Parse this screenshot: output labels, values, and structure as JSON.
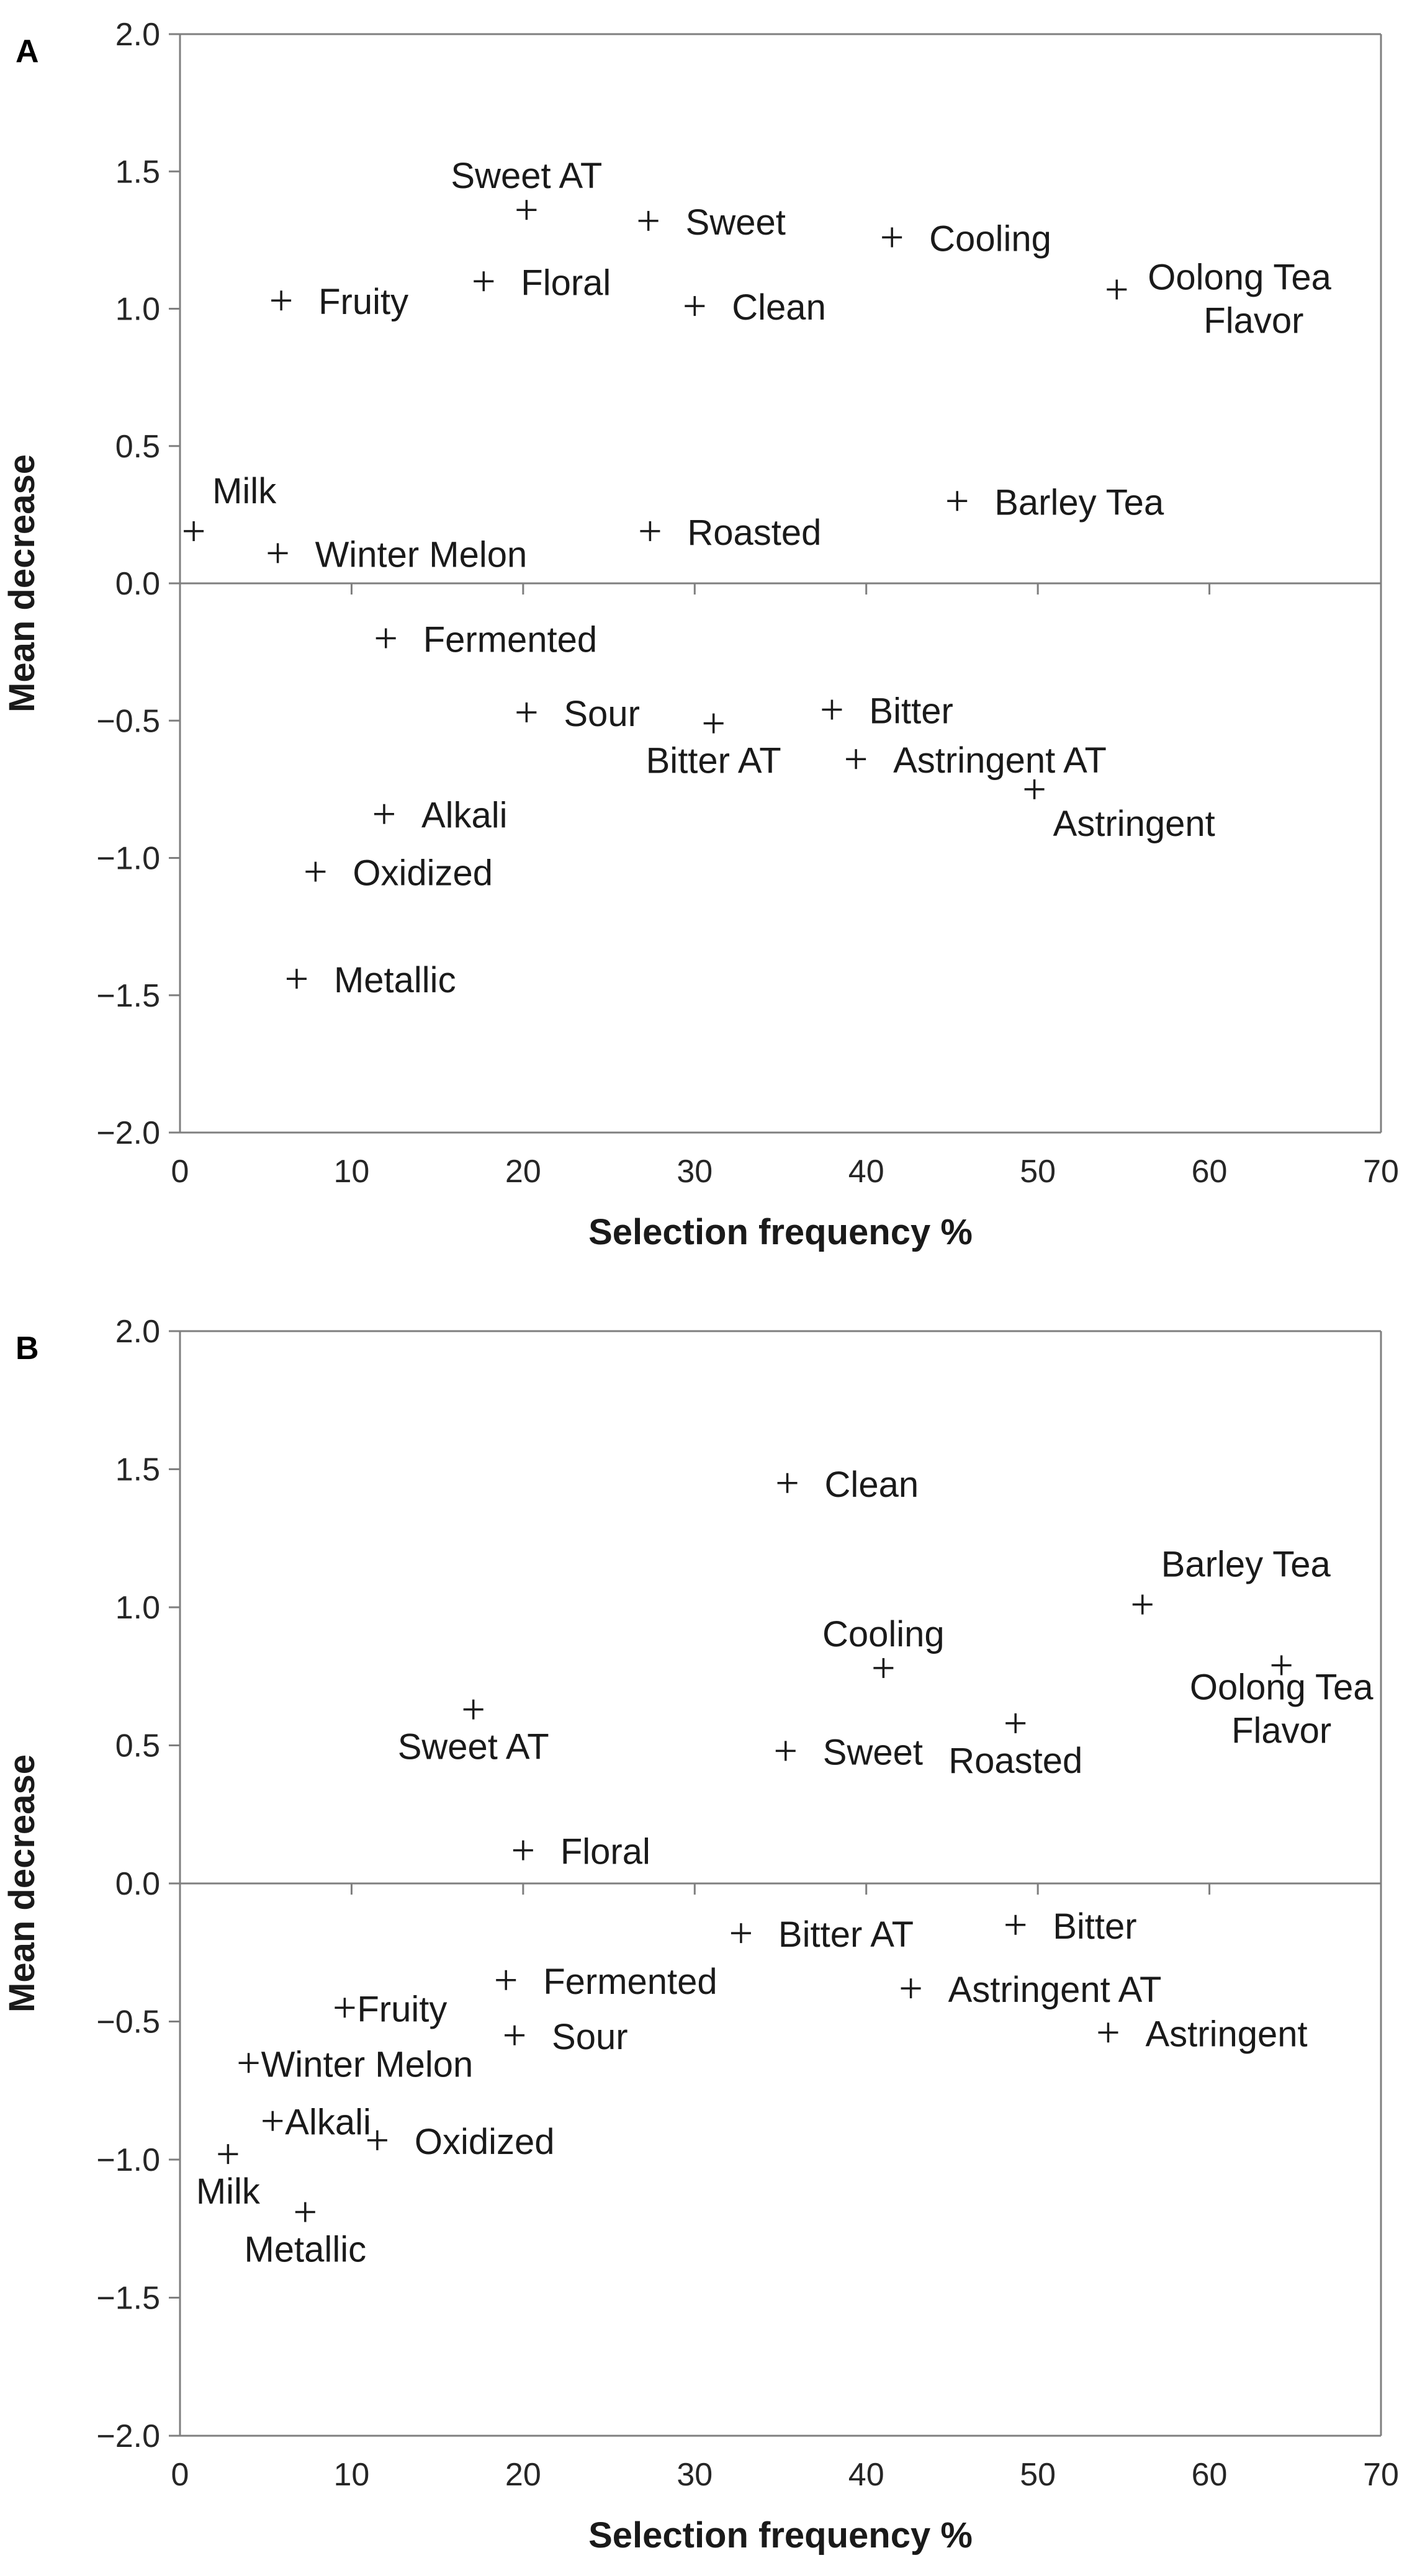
{
  "chart_data": [
    {
      "panel": "A",
      "type": "scatter",
      "xlabel": "Selection frequency %",
      "ylabel": "Mean decrease",
      "xlim": [
        0,
        70
      ],
      "ylim": [
        -2.0,
        2.0
      ],
      "xticks": [
        0,
        10,
        20,
        30,
        40,
        50,
        60,
        70
      ],
      "yticks": [
        2.0,
        1.5,
        1.0,
        0.5,
        0.0,
        -0.5,
        -1.0,
        -1.5,
        -2.0
      ],
      "ytick_labels": [
        "2.0",
        "1.5",
        "1.0",
        "0.5",
        "0.0",
        "−0.5",
        "−1.0",
        "−1.5",
        "−2.0"
      ],
      "grid": false,
      "marker": "+",
      "points": [
        {
          "label": "Sweet AT",
          "x": 20.2,
          "y": 1.36,
          "anchor": "above"
        },
        {
          "label": "Sweet",
          "x": 27.3,
          "y": 1.32,
          "anchor": "right"
        },
        {
          "label": "Cooling",
          "x": 41.5,
          "y": 1.26,
          "anchor": "right"
        },
        {
          "label": "Fruity",
          "x": 5.9,
          "y": 1.03,
          "anchor": "right"
        },
        {
          "label": "Floral",
          "x": 17.7,
          "y": 1.1,
          "anchor": "right"
        },
        {
          "label": "Clean",
          "x": 30.0,
          "y": 1.01,
          "anchor": "right"
        },
        {
          "label": [
            "Oolong Tea",
            "Flavor"
          ],
          "x": 54.6,
          "y": 1.07,
          "anchor": "right2"
        },
        {
          "label": "Milk",
          "x": 0.8,
          "y": 0.19,
          "anchor": "upright"
        },
        {
          "label": "Winter Melon",
          "x": 5.7,
          "y": 0.11,
          "anchor": "right"
        },
        {
          "label": "Roasted",
          "x": 27.4,
          "y": 0.19,
          "anchor": "right"
        },
        {
          "label": "Barley Tea",
          "x": 45.3,
          "y": 0.3,
          "anchor": "right"
        },
        {
          "label": "Fermented",
          "x": 12.0,
          "y": -0.2,
          "anchor": "right"
        },
        {
          "label": "Sour",
          "x": 20.2,
          "y": -0.47,
          "anchor": "right"
        },
        {
          "label": "Bitter AT",
          "x": 31.1,
          "y": -0.51,
          "anchor": "below"
        },
        {
          "label": "Bitter",
          "x": 38.0,
          "y": -0.46,
          "anchor": "right"
        },
        {
          "label": "Astringent AT",
          "x": 39.4,
          "y": -0.64,
          "anchor": "right"
        },
        {
          "label": "Astringent",
          "x": 49.8,
          "y": -0.75,
          "anchor": "belowright"
        },
        {
          "label": "Alkali",
          "x": 11.9,
          "y": -0.84,
          "anchor": "right"
        },
        {
          "label": "Oxidized",
          "x": 7.9,
          "y": -1.05,
          "anchor": "right"
        },
        {
          "label": "Metallic",
          "x": 6.8,
          "y": -1.44,
          "anchor": "right"
        }
      ]
    },
    {
      "panel": "B",
      "type": "scatter",
      "xlabel": "Selection frequency %",
      "ylabel": "Mean decrease",
      "xlim": [
        0,
        70
      ],
      "ylim": [
        -2.0,
        2.0
      ],
      "xticks": [
        0,
        10,
        20,
        30,
        40,
        50,
        60,
        70
      ],
      "yticks": [
        2.0,
        1.5,
        1.0,
        0.5,
        0.0,
        -0.5,
        -1.0,
        -1.5,
        -2.0
      ],
      "ytick_labels": [
        "2.0",
        "1.5",
        "1.0",
        "0.5",
        "0.0",
        "−0.5",
        "−1.0",
        "−1.5",
        "−2.0"
      ],
      "grid": false,
      "marker": "+",
      "points": [
        {
          "label": "Clean",
          "x": 35.4,
          "y": 1.45,
          "anchor": "right"
        },
        {
          "label": "Barley Tea",
          "x": 56.1,
          "y": 1.01,
          "anchor": "upright"
        },
        {
          "label": "Cooling",
          "x": 41.0,
          "y": 0.78,
          "anchor": "above"
        },
        {
          "label": [
            "Oolong Tea",
            "Flavor"
          ],
          "x": 64.2,
          "y": 0.79,
          "anchor": "below2"
        },
        {
          "label": "Sweet AT",
          "x": 17.1,
          "y": 0.63,
          "anchor": "below"
        },
        {
          "label": "Roasted",
          "x": 48.7,
          "y": 0.58,
          "anchor": "below"
        },
        {
          "label": "Sweet",
          "x": 35.3,
          "y": 0.48,
          "anchor": "right"
        },
        {
          "label": "Floral",
          "x": 20.0,
          "y": 0.12,
          "anchor": "right"
        },
        {
          "label": "Bitter AT",
          "x": 32.7,
          "y": -0.18,
          "anchor": "right"
        },
        {
          "label": "Bitter",
          "x": 48.7,
          "y": -0.15,
          "anchor": "right"
        },
        {
          "label": "Fermented",
          "x": 19.0,
          "y": -0.35,
          "anchor": "right"
        },
        {
          "label": "Astringent AT",
          "x": 42.6,
          "y": -0.38,
          "anchor": "right"
        },
        {
          "label": "Astringent",
          "x": 54.1,
          "y": -0.54,
          "anchor": "right"
        },
        {
          "label": "Sour",
          "x": 19.5,
          "y": -0.55,
          "anchor": "right"
        },
        {
          "label": "Fruity",
          "x": 9.6,
          "y": -0.45,
          "anchor": "righttight"
        },
        {
          "label": "Winter Melon",
          "x": 4.0,
          "y": -0.65,
          "anchor": "righttight"
        },
        {
          "label": "Alkali",
          "x": 5.4,
          "y": -0.86,
          "anchor": "righttight"
        },
        {
          "label": "Oxidized",
          "x": 11.5,
          "y": -0.93,
          "anchor": "right"
        },
        {
          "label": "Milk",
          "x": 2.8,
          "y": -0.98,
          "anchor": "below"
        },
        {
          "label": "Metallic",
          "x": 7.3,
          "y": -1.19,
          "anchor": "below"
        }
      ]
    }
  ]
}
